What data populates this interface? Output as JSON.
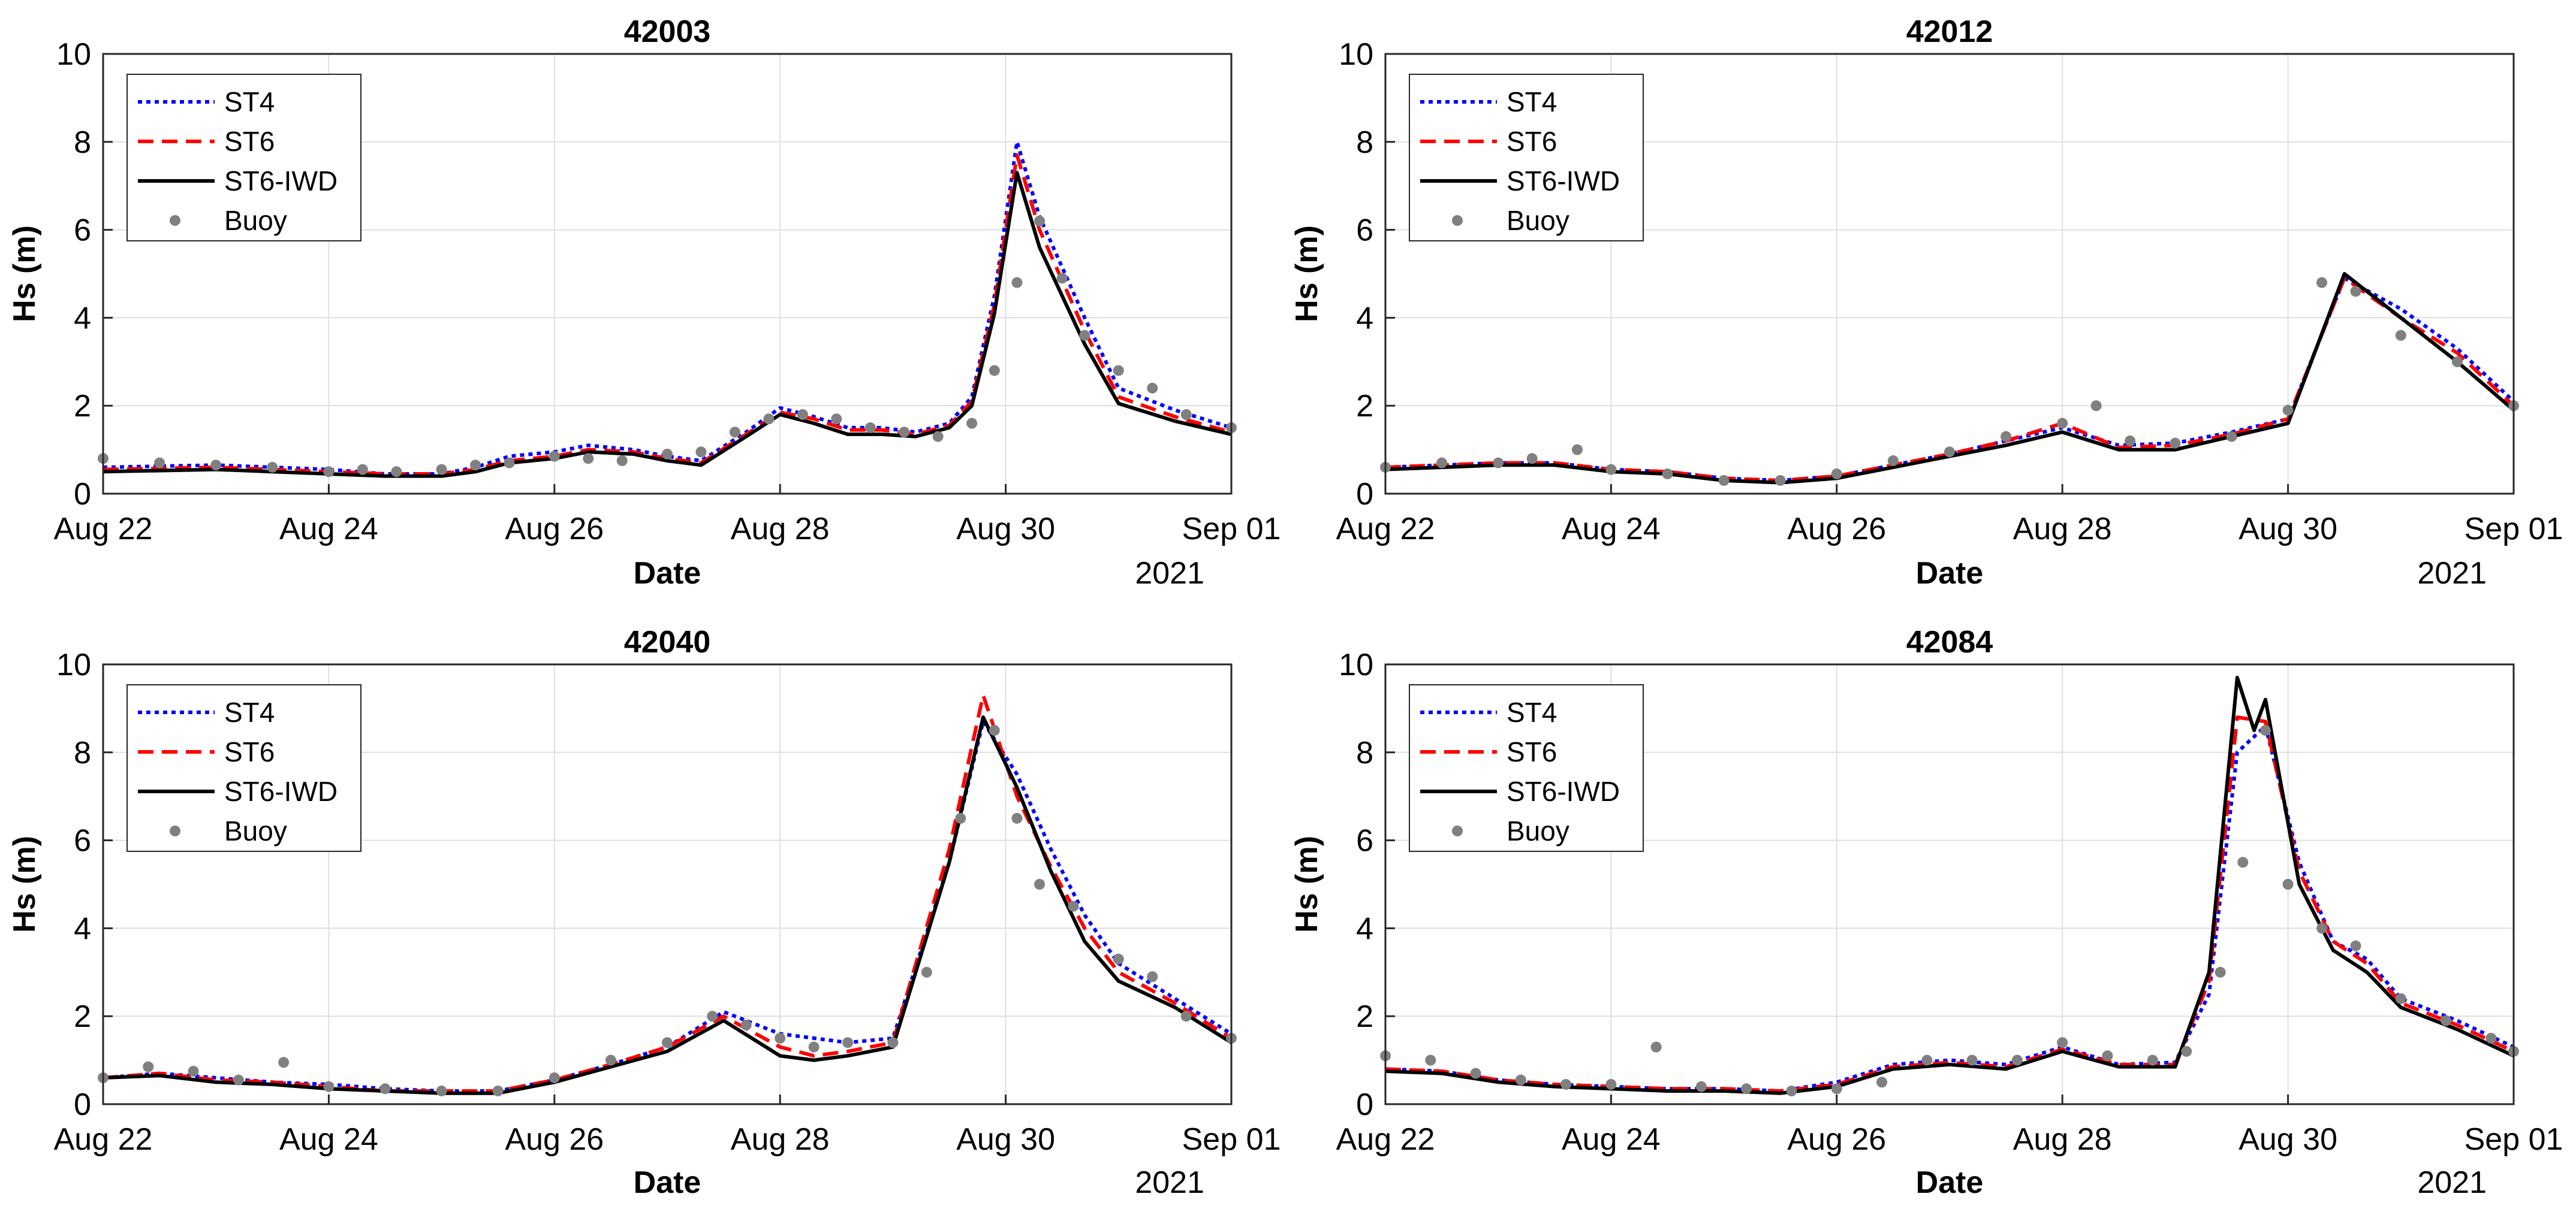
{
  "chart_data": [
    {
      "type": "line",
      "title": "42003",
      "xlabel": "Date",
      "ylabel": "Hs (m)",
      "year_label": "2021",
      "xlim": [
        0,
        10
      ],
      "ylim": [
        0,
        10
      ],
      "x_ticks": [
        0,
        2,
        4,
        6,
        8,
        10
      ],
      "x_tick_labels": [
        "Aug 22",
        "Aug 24",
        "Aug 26",
        "Aug 28",
        "Aug 30",
        "Sep 01"
      ],
      "y_ticks": [
        0,
        2,
        4,
        6,
        8,
        10
      ],
      "y_tick_labels": [
        "0",
        "2",
        "4",
        "6",
        "8",
        "10"
      ],
      "grid": true,
      "legend_position": "top-left",
      "series": [
        {
          "name": "ST4",
          "style": "dotted",
          "color": "#0000ff",
          "x": [
            0,
            1,
            2,
            2.5,
            3,
            3.3,
            3.6,
            4,
            4.3,
            4.7,
            5,
            5.3,
            5.7,
            6,
            6.3,
            6.6,
            6.9,
            7.2,
            7.5,
            7.7,
            7.9,
            8.1,
            8.3,
            8.7,
            9,
            9.5,
            10
          ],
          "y": [
            0.6,
            0.65,
            0.55,
            0.45,
            0.45,
            0.6,
            0.85,
            0.95,
            1.1,
            1.0,
            0.85,
            0.75,
            1.4,
            1.95,
            1.75,
            1.5,
            1.5,
            1.4,
            1.6,
            2.2,
            4.5,
            8.0,
            6.3,
            4.0,
            2.4,
            1.9,
            1.5
          ]
        },
        {
          "name": "ST6",
          "style": "dashed",
          "color": "#ff0000",
          "x": [
            0,
            1,
            2,
            2.5,
            3,
            3.3,
            3.6,
            4,
            4.3,
            4.7,
            5,
            5.3,
            5.7,
            6,
            6.3,
            6.6,
            6.9,
            7.2,
            7.5,
            7.7,
            7.9,
            8.1,
            8.3,
            8.7,
            9,
            9.5,
            10
          ],
          "y": [
            0.55,
            0.6,
            0.5,
            0.45,
            0.45,
            0.55,
            0.75,
            0.85,
            1.0,
            0.95,
            0.8,
            0.7,
            1.35,
            1.85,
            1.7,
            1.45,
            1.45,
            1.35,
            1.55,
            2.1,
            4.3,
            7.7,
            6.0,
            3.7,
            2.2,
            1.75,
            1.4
          ]
        },
        {
          "name": "ST6-IWD",
          "style": "solid",
          "color": "#000000",
          "x": [
            0,
            1,
            2,
            2.5,
            3,
            3.3,
            3.6,
            4,
            4.3,
            4.7,
            5,
            5.3,
            5.7,
            6,
            6.3,
            6.6,
            6.9,
            7.2,
            7.5,
            7.7,
            7.9,
            8.1,
            8.3,
            8.7,
            9,
            9.5,
            10
          ],
          "y": [
            0.5,
            0.55,
            0.45,
            0.4,
            0.4,
            0.5,
            0.7,
            0.8,
            0.95,
            0.9,
            0.75,
            0.65,
            1.3,
            1.8,
            1.6,
            1.35,
            1.35,
            1.3,
            1.5,
            2.0,
            4.1,
            7.3,
            5.6,
            3.4,
            2.05,
            1.65,
            1.35
          ]
        },
        {
          "name": "Buoy",
          "style": "markers",
          "color": "#808080",
          "x": [
            0,
            0.5,
            1,
            1.5,
            2,
            2.3,
            2.6,
            3,
            3.3,
            3.6,
            4,
            4.3,
            4.6,
            5,
            5.3,
            5.6,
            5.9,
            6.2,
            6.5,
            6.8,
            7.1,
            7.4,
            7.7,
            7.9,
            8.1,
            8.3,
            8.5,
            8.7,
            9,
            9.3,
            9.6,
            10
          ],
          "y": [
            0.8,
            0.7,
            0.65,
            0.6,
            0.5,
            0.55,
            0.5,
            0.55,
            0.65,
            0.7,
            0.85,
            0.8,
            0.75,
            0.9,
            0.95,
            1.4,
            1.7,
            1.8,
            1.7,
            1.5,
            1.4,
            1.3,
            1.6,
            2.8,
            4.8,
            6.2,
            4.9,
            3.6,
            2.8,
            2.4,
            1.8,
            1.5
          ]
        }
      ]
    },
    {
      "type": "line",
      "title": "42012",
      "xlabel": "Date",
      "ylabel": "Hs (m)",
      "year_label": "2021",
      "xlim": [
        0,
        10
      ],
      "ylim": [
        0,
        10
      ],
      "x_ticks": [
        0,
        2,
        4,
        6,
        8,
        10
      ],
      "x_tick_labels": [
        "Aug 22",
        "Aug 24",
        "Aug 26",
        "Aug 28",
        "Aug 30",
        "Sep 01"
      ],
      "y_ticks": [
        0,
        2,
        4,
        6,
        8,
        10
      ],
      "y_tick_labels": [
        "0",
        "2",
        "4",
        "6",
        "8",
        "10"
      ],
      "grid": true,
      "legend_position": "top-left",
      "series": [
        {
          "name": "ST4",
          "style": "dotted",
          "color": "#0000ff",
          "x": [
            0,
            0.5,
            1,
            1.5,
            2,
            2.5,
            3,
            3.5,
            4,
            4.5,
            5,
            5.5,
            6,
            6.5,
            7,
            7.5,
            8,
            8.5,
            9,
            9.5,
            10
          ],
          "y": [
            0.6,
            0.65,
            0.7,
            0.7,
            0.55,
            0.5,
            0.35,
            0.3,
            0.4,
            0.65,
            0.9,
            1.2,
            1.5,
            1.1,
            1.15,
            1.4,
            1.7,
            4.9,
            4.2,
            3.3,
            2.1
          ]
        },
        {
          "name": "ST6",
          "style": "dashed",
          "color": "#ff0000",
          "x": [
            0,
            0.5,
            1,
            1.5,
            2,
            2.5,
            3,
            3.5,
            4,
            4.5,
            5,
            5.5,
            6,
            6.5,
            7,
            7.5,
            8,
            8.5,
            9,
            9.5,
            10
          ],
          "y": [
            0.6,
            0.65,
            0.7,
            0.7,
            0.55,
            0.5,
            0.35,
            0.3,
            0.4,
            0.65,
            0.9,
            1.2,
            1.6,
            1.05,
            1.1,
            1.35,
            1.7,
            4.9,
            4.0,
            3.2,
            2.0
          ]
        },
        {
          "name": "ST6-IWD",
          "style": "solid",
          "color": "#000000",
          "x": [
            0,
            0.5,
            1,
            1.5,
            2,
            2.5,
            3,
            3.5,
            4,
            4.5,
            5,
            5.5,
            6,
            6.5,
            7,
            7.5,
            8,
            8.5,
            9,
            9.5,
            10
          ],
          "y": [
            0.55,
            0.6,
            0.65,
            0.65,
            0.5,
            0.45,
            0.3,
            0.25,
            0.35,
            0.6,
            0.85,
            1.1,
            1.4,
            1.0,
            1.0,
            1.3,
            1.6,
            5.0,
            4.0,
            3.0,
            1.9
          ]
        },
        {
          "name": "Buoy",
          "style": "markers",
          "color": "#808080",
          "x": [
            0,
            0.5,
            1,
            1.3,
            1.7,
            2,
            2.5,
            3,
            3.5,
            4,
            4.5,
            5,
            5.5,
            6,
            6.3,
            6.6,
            7,
            7.5,
            8,
            8.3,
            8.6,
            9,
            9.5,
            10
          ],
          "y": [
            0.6,
            0.7,
            0.7,
            0.8,
            1.0,
            0.55,
            0.45,
            0.3,
            0.3,
            0.45,
            0.75,
            0.95,
            1.3,
            1.6,
            2.0,
            1.2,
            1.15,
            1.3,
            1.9,
            4.8,
            4.6,
            3.6,
            3.0,
            2.0
          ]
        }
      ]
    },
    {
      "type": "line",
      "title": "42040",
      "xlabel": "Date",
      "ylabel": "Hs (m)",
      "year_label": "2021",
      "xlim": [
        0,
        10
      ],
      "ylim": [
        0,
        10
      ],
      "x_ticks": [
        0,
        2,
        4,
        6,
        8,
        10
      ],
      "x_tick_labels": [
        "Aug 22",
        "Aug 24",
        "Aug 26",
        "Aug 28",
        "Aug 30",
        "Sep 01"
      ],
      "y_ticks": [
        0,
        2,
        4,
        6,
        8,
        10
      ],
      "y_tick_labels": [
        "0",
        "2",
        "4",
        "6",
        "8",
        "10"
      ],
      "grid": true,
      "legend_position": "top-left",
      "series": [
        {
          "name": "ST4",
          "style": "dotted",
          "color": "#0000ff",
          "x": [
            0,
            0.5,
            1,
            1.5,
            2,
            2.5,
            3,
            3.5,
            4,
            4.5,
            5,
            5.5,
            6,
            6.3,
            6.6,
            7,
            7.5,
            7.8,
            8.1,
            8.4,
            8.7,
            9,
            9.5,
            10
          ],
          "y": [
            0.6,
            0.7,
            0.6,
            0.5,
            0.45,
            0.35,
            0.3,
            0.3,
            0.55,
            0.9,
            1.3,
            2.1,
            1.6,
            1.5,
            1.4,
            1.5,
            5.5,
            8.7,
            7.5,
            5.8,
            4.3,
            3.2,
            2.4,
            1.6
          ]
        },
        {
          "name": "ST6",
          "style": "dashed",
          "color": "#ff0000",
          "x": [
            0,
            0.5,
            1,
            1.5,
            2,
            2.5,
            3,
            3.5,
            4,
            4.5,
            5,
            5.5,
            6,
            6.3,
            6.6,
            7,
            7.5,
            7.8,
            8.1,
            8.4,
            8.7,
            9,
            9.5,
            10
          ],
          "y": [
            0.6,
            0.7,
            0.55,
            0.5,
            0.4,
            0.3,
            0.3,
            0.3,
            0.55,
            0.9,
            1.3,
            2.0,
            1.3,
            1.1,
            1.2,
            1.4,
            5.8,
            9.3,
            7.0,
            5.4,
            4.0,
            3.0,
            2.3,
            1.5
          ]
        },
        {
          "name": "ST6-IWD",
          "style": "solid",
          "color": "#000000",
          "x": [
            0,
            0.5,
            1,
            1.5,
            2,
            2.5,
            3,
            3.5,
            4,
            4.5,
            5,
            5.5,
            6,
            6.3,
            6.6,
            7,
            7.5,
            7.8,
            8.1,
            8.4,
            8.7,
            9,
            9.5,
            10
          ],
          "y": [
            0.6,
            0.65,
            0.5,
            0.45,
            0.35,
            0.3,
            0.25,
            0.25,
            0.5,
            0.85,
            1.2,
            1.9,
            1.1,
            1.0,
            1.1,
            1.3,
            5.5,
            8.8,
            7.2,
            5.3,
            3.7,
            2.8,
            2.2,
            1.4
          ]
        },
        {
          "name": "Buoy",
          "style": "markers",
          "color": "#808080",
          "x": [
            0,
            0.4,
            0.8,
            1.2,
            1.6,
            2,
            2.5,
            3,
            3.5,
            4,
            4.5,
            5,
            5.4,
            5.7,
            6,
            6.3,
            6.6,
            7,
            7.3,
            7.6,
            7.9,
            8.1,
            8.3,
            8.6,
            9,
            9.3,
            9.6,
            10
          ],
          "y": [
            0.6,
            0.85,
            0.75,
            0.55,
            0.95,
            0.4,
            0.35,
            0.3,
            0.3,
            0.6,
            1.0,
            1.4,
            2.0,
            1.8,
            1.5,
            1.3,
            1.4,
            1.4,
            3.0,
            6.5,
            8.5,
            6.5,
            5.0,
            4.5,
            3.3,
            2.9,
            2.0,
            1.5
          ]
        }
      ]
    },
    {
      "type": "line",
      "title": "42084",
      "xlabel": "Date",
      "ylabel": "Hs (m)",
      "year_label": "2021",
      "xlim": [
        0,
        10
      ],
      "ylim": [
        0,
        10
      ],
      "x_ticks": [
        0,
        2,
        4,
        6,
        8,
        10
      ],
      "x_tick_labels": [
        "Aug 22",
        "Aug 24",
        "Aug 26",
        "Aug 28",
        "Aug 30",
        "Sep 01"
      ],
      "y_ticks": [
        0,
        2,
        4,
        6,
        8,
        10
      ],
      "y_tick_labels": [
        "0",
        "2",
        "4",
        "6",
        "8",
        "10"
      ],
      "grid": true,
      "legend_position": "top-left",
      "series": [
        {
          "name": "ST4",
          "style": "dotted",
          "color": "#0000ff",
          "x": [
            0,
            0.5,
            1,
            1.5,
            2,
            2.5,
            3,
            3.5,
            4,
            4.5,
            5,
            5.5,
            6,
            6.5,
            7,
            7.3,
            7.55,
            7.8,
            8.1,
            8.4,
            8.7,
            9,
            9.5,
            10
          ],
          "y": [
            0.8,
            0.75,
            0.55,
            0.45,
            0.4,
            0.35,
            0.35,
            0.3,
            0.5,
            0.9,
            1.0,
            0.9,
            1.3,
            0.9,
            0.95,
            2.5,
            8.0,
            8.6,
            5.5,
            3.7,
            3.3,
            2.4,
            1.9,
            1.3
          ]
        },
        {
          "name": "ST6",
          "style": "dashed",
          "color": "#ff0000",
          "x": [
            0,
            0.5,
            1,
            1.5,
            2,
            2.5,
            3,
            3.5,
            4,
            4.5,
            5,
            5.5,
            6,
            6.5,
            7,
            7.3,
            7.55,
            7.8,
            8.1,
            8.4,
            8.7,
            9,
            9.5,
            10
          ],
          "y": [
            0.8,
            0.75,
            0.55,
            0.45,
            0.4,
            0.35,
            0.35,
            0.3,
            0.45,
            0.85,
            0.95,
            0.85,
            1.25,
            0.9,
            0.9,
            2.8,
            8.8,
            8.7,
            5.3,
            3.7,
            3.2,
            2.3,
            1.8,
            1.2
          ]
        },
        {
          "name": "ST6-IWD",
          "style": "solid",
          "color": "#000000",
          "x": [
            0,
            0.5,
            1,
            1.5,
            2,
            2.5,
            3,
            3.5,
            4,
            4.5,
            5,
            5.5,
            6,
            6.5,
            7,
            7.3,
            7.55,
            7.7,
            7.8,
            8.1,
            8.4,
            8.7,
            9,
            9.5,
            10
          ],
          "y": [
            0.75,
            0.7,
            0.5,
            0.4,
            0.35,
            0.3,
            0.3,
            0.25,
            0.4,
            0.8,
            0.9,
            0.8,
            1.2,
            0.85,
            0.85,
            3.0,
            9.7,
            8.5,
            9.2,
            5.0,
            3.5,
            3.0,
            2.2,
            1.7,
            1.1
          ]
        },
        {
          "name": "Buoy",
          "style": "markers",
          "color": "#808080",
          "x": [
            0,
            0.4,
            0.8,
            1.2,
            1.6,
            2,
            2.4,
            2.8,
            3.2,
            3.6,
            4,
            4.4,
            4.8,
            5.2,
            5.6,
            6,
            6.4,
            6.8,
            7.1,
            7.4,
            7.6,
            7.8,
            8,
            8.3,
            8.6,
            9,
            9.4,
            9.8,
            10
          ],
          "y": [
            1.1,
            1.0,
            0.7,
            0.55,
            0.45,
            0.45,
            1.3,
            0.4,
            0.35,
            0.3,
            0.35,
            0.5,
            1.0,
            1.0,
            1.0,
            1.4,
            1.1,
            1.0,
            1.2,
            3.0,
            5.5,
            8.5,
            5.0,
            4.0,
            3.6,
            2.4,
            1.9,
            1.5,
            1.2
          ]
        }
      ]
    }
  ]
}
